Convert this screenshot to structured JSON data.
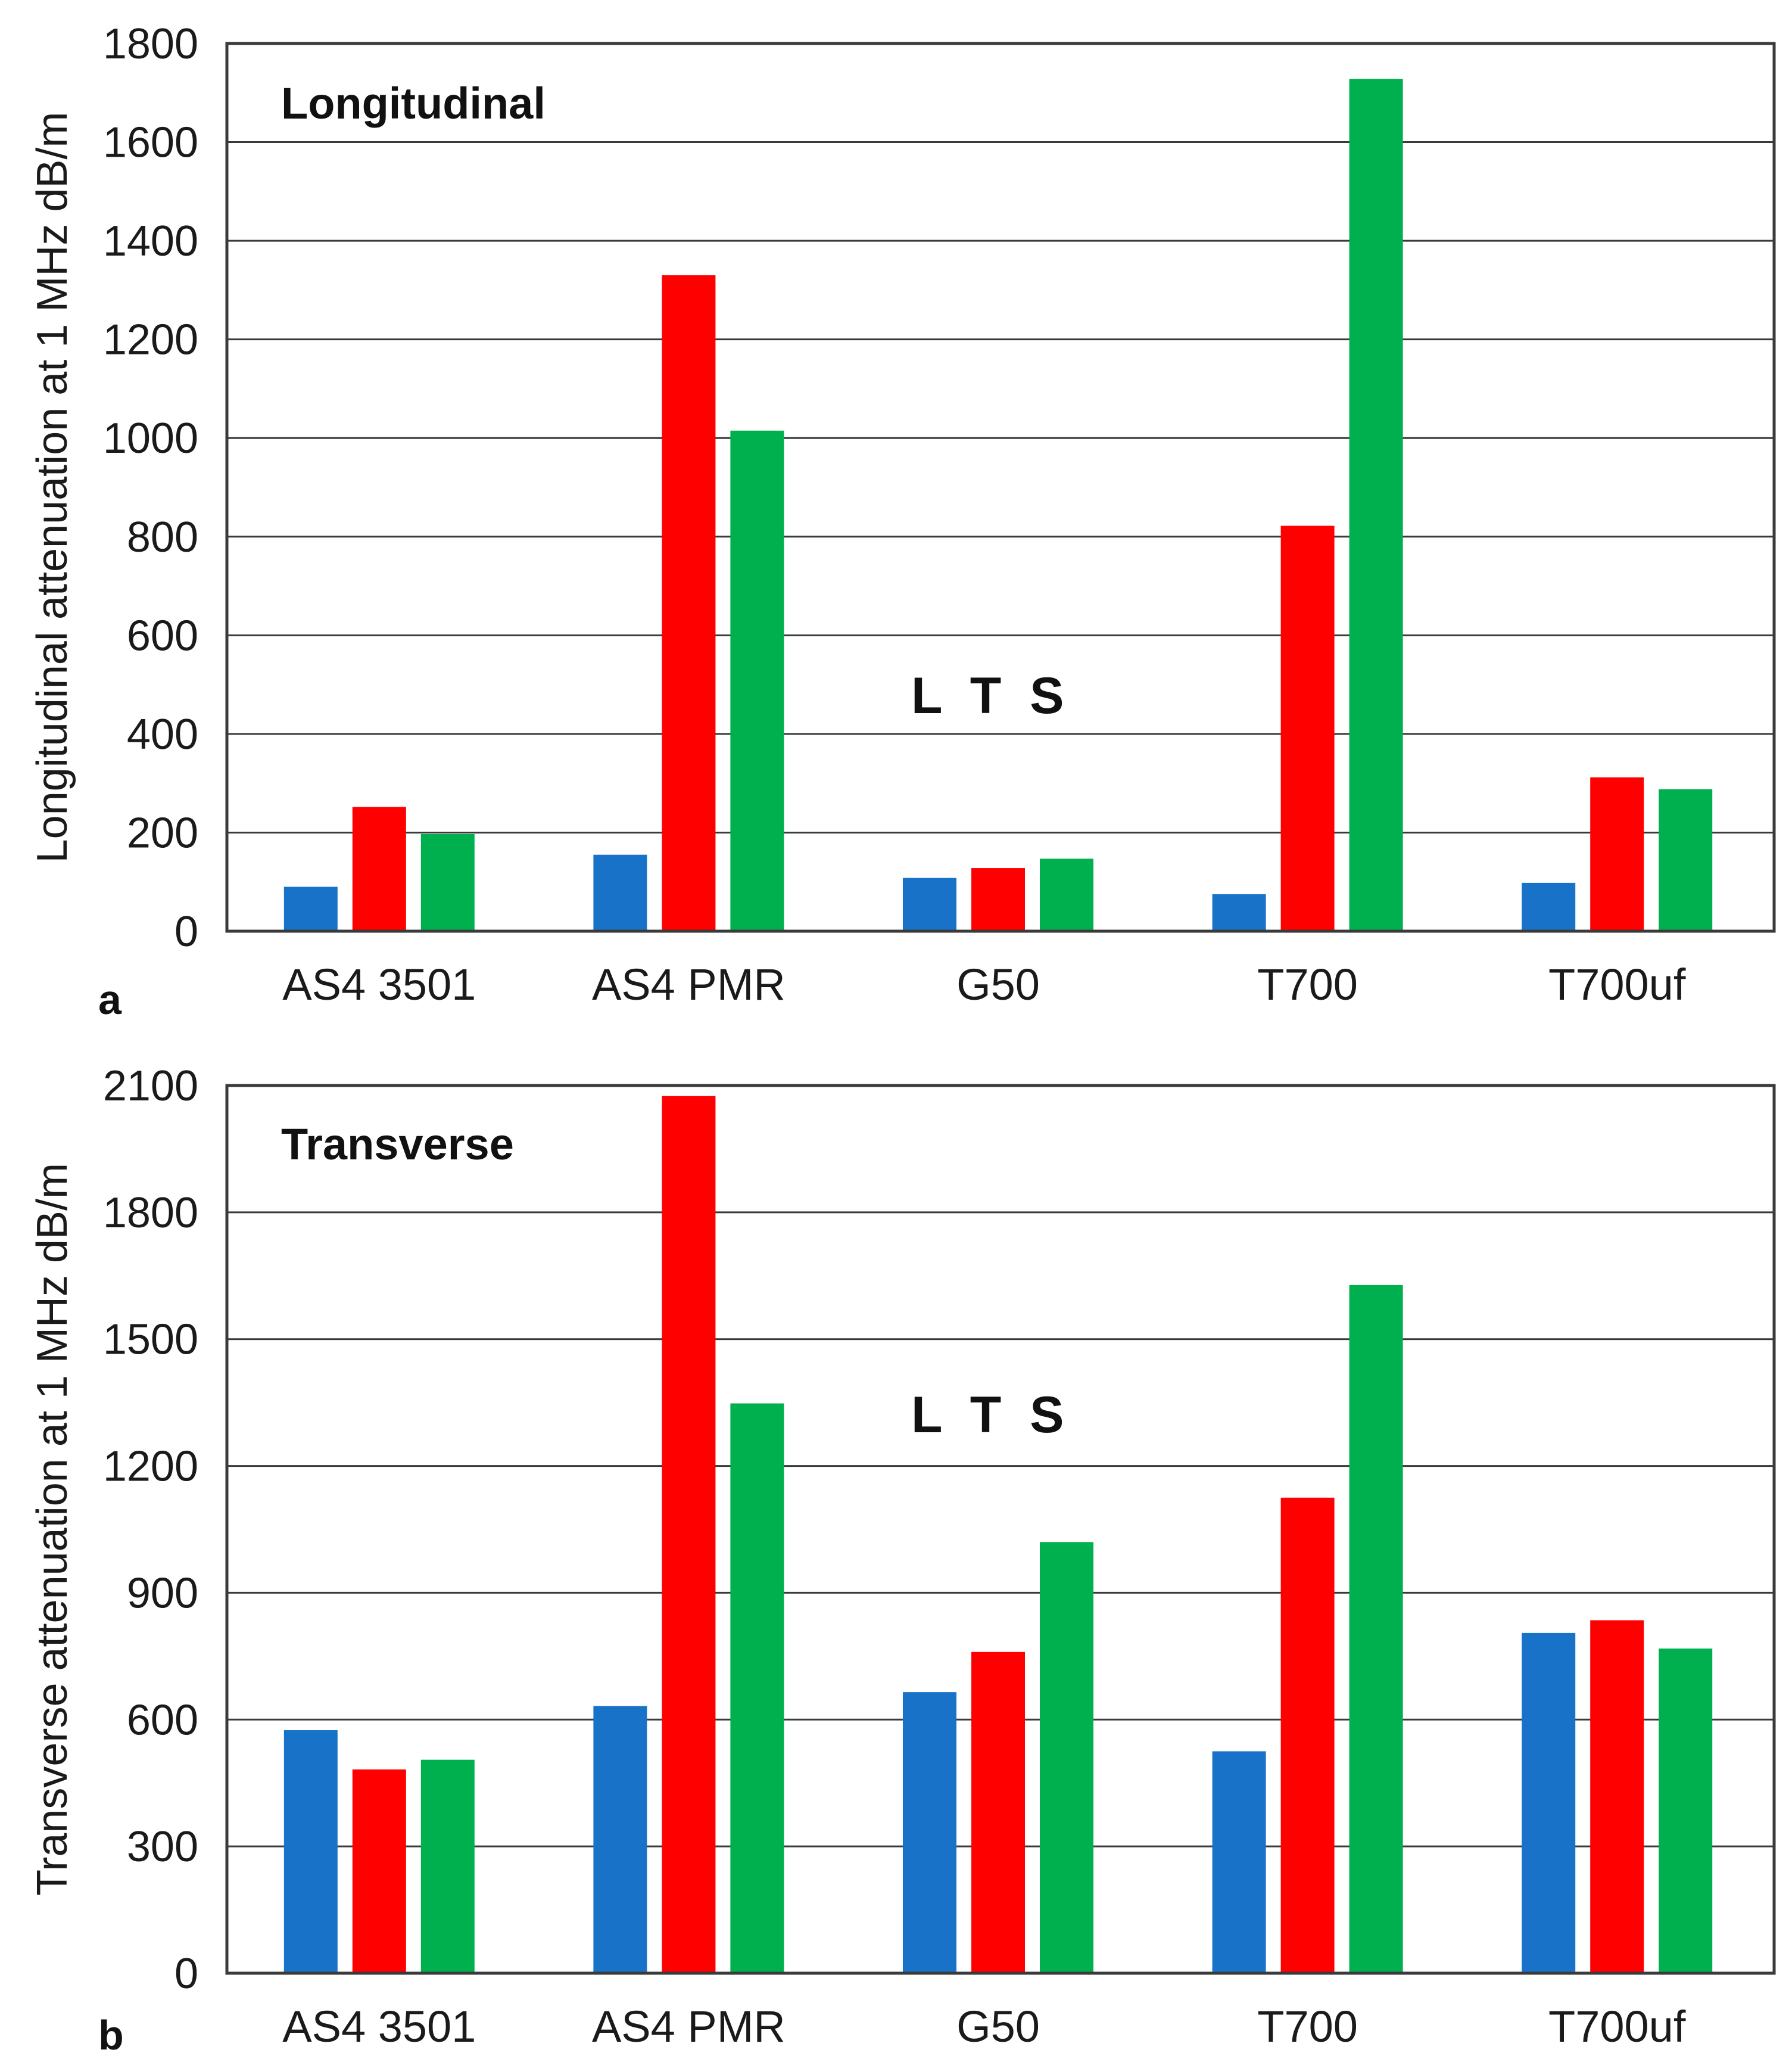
{
  "series_colors": {
    "L": "#1873c8",
    "T": "#ff0000",
    "S": "#00b04f"
  },
  "chart_data": [
    {
      "type": "bar",
      "panel_label": "a",
      "title": "Longitudinal",
      "legend_text": "L  T  S",
      "ylabel": "Longitudinal attenuation at 1 MHz dB/m",
      "xlabel": "",
      "ylim": [
        0,
        1800
      ],
      "yticks": [
        "0",
        "200",
        "400",
        "600",
        "800",
        "1000",
        "1200",
        "1400",
        "1600",
        "1800"
      ],
      "categories": [
        "AS4 3501",
        "AS4 PMR",
        "G50",
        "T700",
        "T700uf"
      ],
      "series": [
        {
          "name": "L",
          "values": [
            90,
            155,
            108,
            75,
            98
          ]
        },
        {
          "name": "T",
          "values": [
            252,
            1330,
            128,
            822,
            312
          ]
        },
        {
          "name": "S",
          "values": [
            197,
            1015,
            147,
            1728,
            288
          ]
        }
      ]
    },
    {
      "type": "bar",
      "panel_label": "b",
      "title": "Transverse",
      "legend_text": "L  T  S",
      "ylabel": "Transverse attenuation at 1 MHz  dB/m",
      "xlabel": "",
      "ylim": [
        0,
        2100
      ],
      "yticks": [
        "0",
        "300",
        "600",
        "900",
        "1200",
        "1500",
        "1800",
        "2100"
      ],
      "categories": [
        "AS4 3501",
        "AS4 PMR",
        "G50",
        "T700",
        "T700uf"
      ],
      "series": [
        {
          "name": "L",
          "values": [
            575,
            632,
            665,
            525,
            805
          ]
        },
        {
          "name": "T",
          "values": [
            482,
            2075,
            760,
            1125,
            835
          ]
        },
        {
          "name": "S",
          "values": [
            505,
            1348,
            1020,
            1628,
            768
          ]
        }
      ]
    }
  ]
}
